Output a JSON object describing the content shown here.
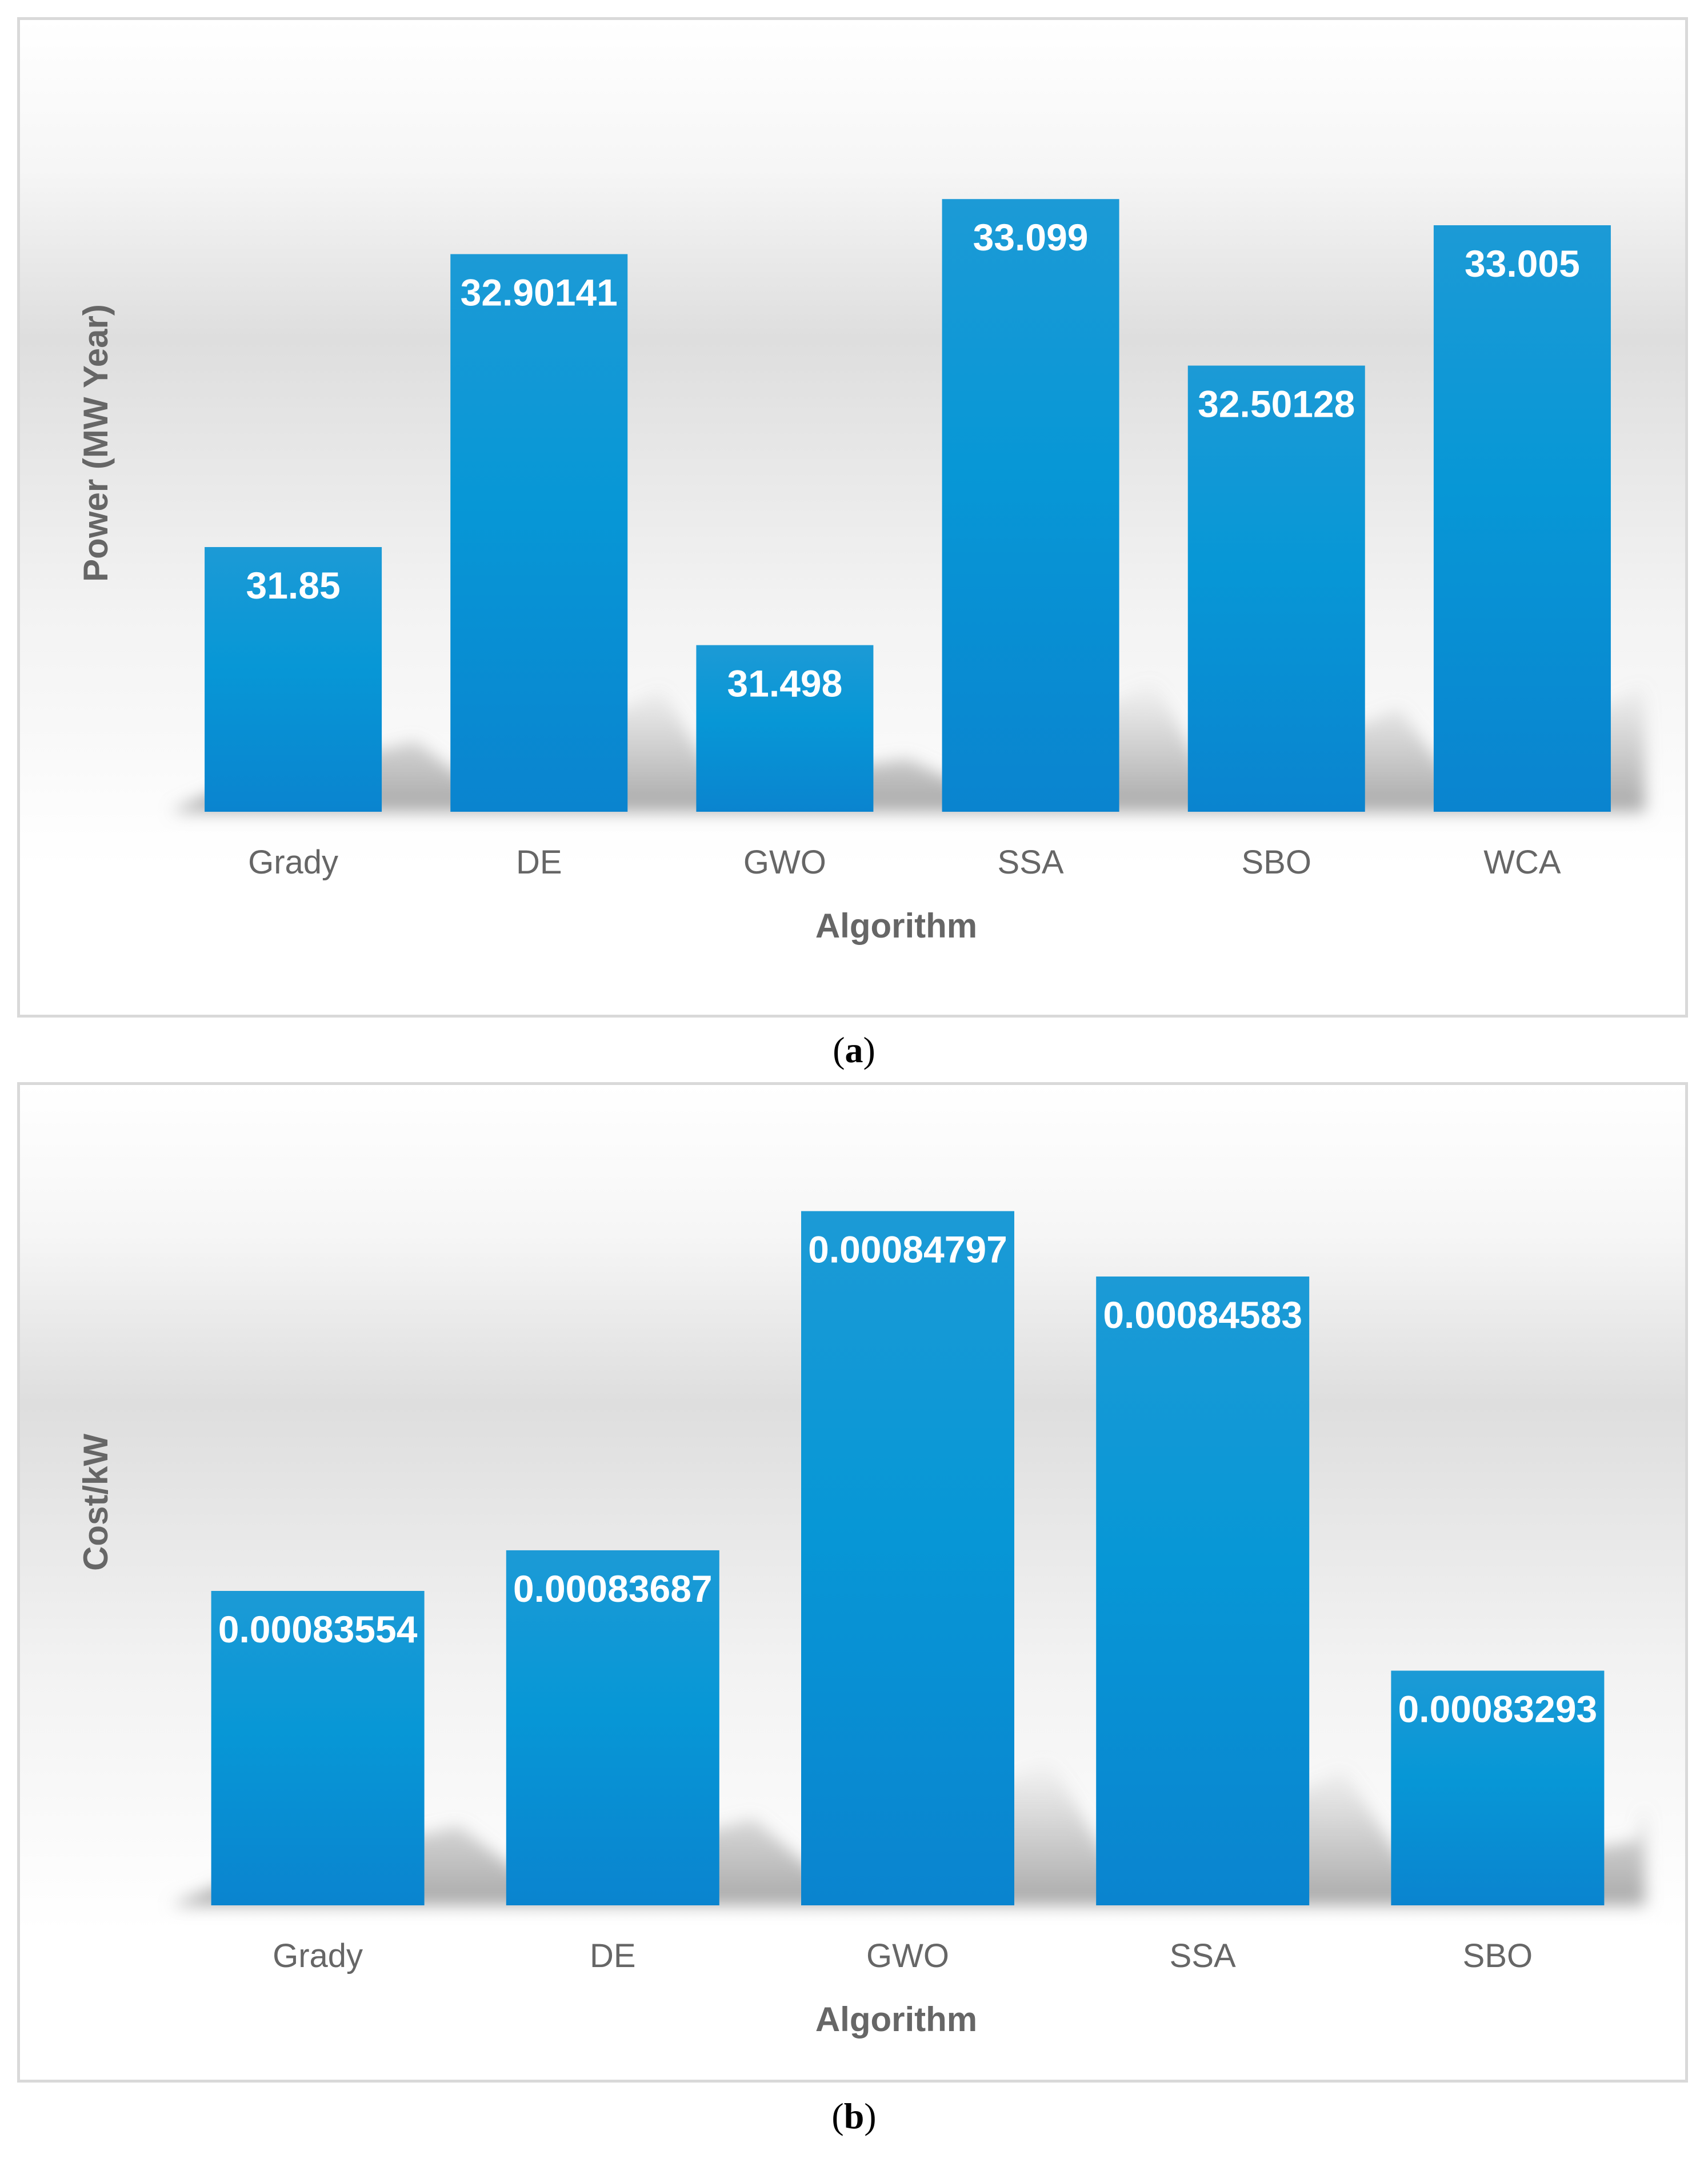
{
  "colors": {
    "bar_top": "#1c9ad6",
    "bar_mid": "#0797d6",
    "bar_bottom": "#0a84cf",
    "shadow": "#9a9a9a",
    "axis_text": "#666666",
    "label_text": "#ffffff",
    "border": "#d9d9d9"
  },
  "chart_data": [
    {
      "type": "bar",
      "panel_label": "a",
      "title": "",
      "xlabel": "Algorithm",
      "ylabel": "Power (MW Year)",
      "categories": [
        "Grady",
        "DE",
        "GWO",
        "SSA",
        "SBO",
        "WCA"
      ],
      "values": [
        31.85,
        32.90141,
        31.498,
        33.099,
        32.50128,
        33.005
      ],
      "value_labels": [
        "31.85",
        "32.90141",
        "31.498",
        "33.099",
        "32.50128",
        "33.005"
      ],
      "ylim": [
        30.9,
        33.28
      ],
      "grid": false,
      "legend": "none"
    },
    {
      "type": "bar",
      "panel_label": "b",
      "title": "",
      "xlabel": "Algorithm",
      "ylabel": "Cost/kW",
      "categories": [
        "Grady",
        "DE",
        "GWO",
        "SSA",
        "SBO"
      ],
      "values": [
        0.00083554,
        0.00083687,
        0.00084797,
        0.00084583,
        0.00083293
      ],
      "value_labels": [
        "0.00083554",
        "0.00083687",
        "0.00084797",
        "0.00084583",
        "0.00083293"
      ],
      "ylim": [
        0.00082525,
        0.00084873
      ],
      "grid": false,
      "legend": "none"
    }
  ]
}
